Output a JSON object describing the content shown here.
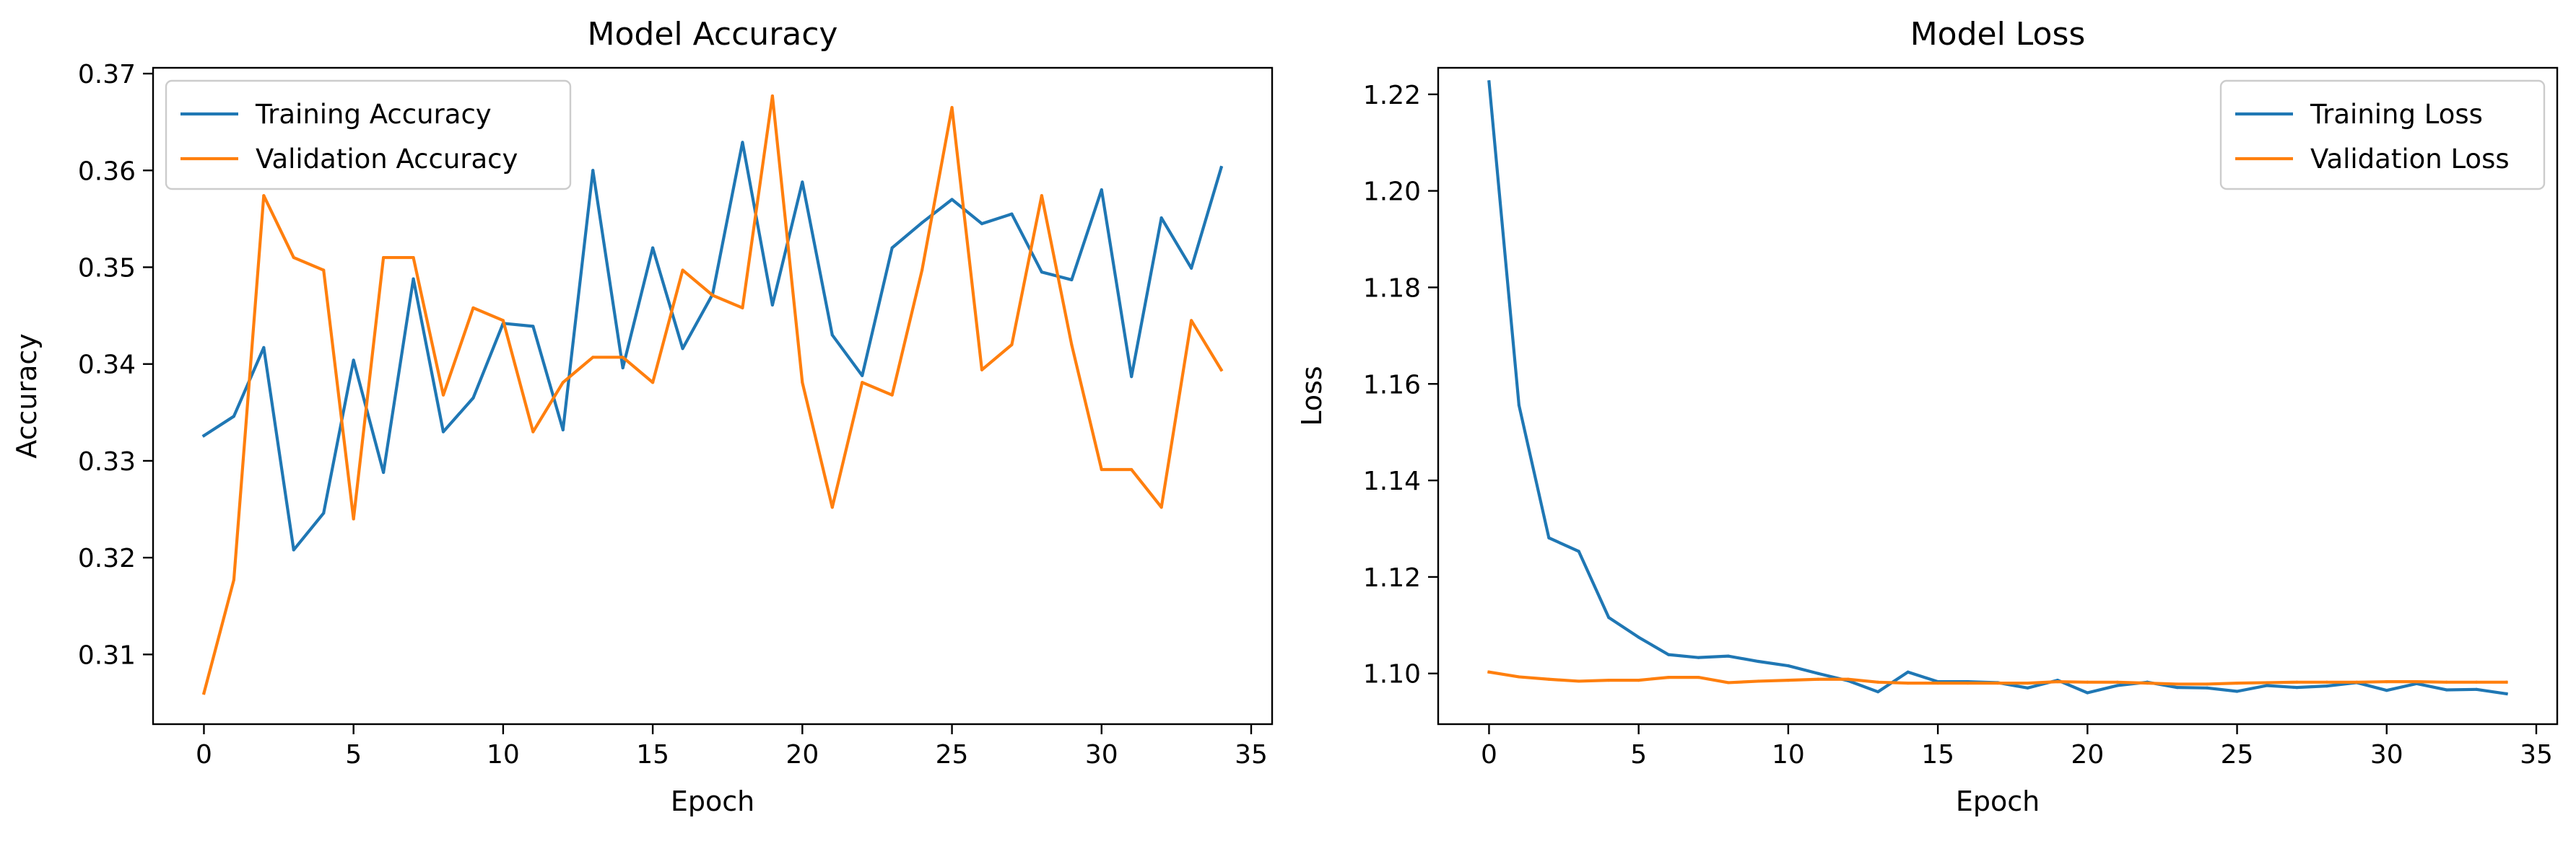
{
  "chart_data": [
    {
      "type": "line",
      "title": "Model Accuracy",
      "xlabel": "Epoch",
      "ylabel": "Accuracy",
      "xlim": [
        -1.7,
        35.7
      ],
      "ylim": [
        0.3028,
        0.3706
      ],
      "xticks": [
        0,
        5,
        10,
        15,
        20,
        25,
        30,
        35
      ],
      "yticks": [
        0.31,
        0.32,
        0.33,
        0.34,
        0.35,
        0.36,
        0.37
      ],
      "ytick_labels": [
        "0.31",
        "0.32",
        "0.33",
        "0.34",
        "0.35",
        "0.36",
        "0.37"
      ],
      "grid": false,
      "legend": "upper left",
      "x": [
        0,
        1,
        2,
        3,
        4,
        5,
        6,
        7,
        8,
        9,
        10,
        11,
        12,
        13,
        14,
        15,
        16,
        17,
        18,
        19,
        20,
        21,
        22,
        23,
        24,
        25,
        26,
        27,
        28,
        29,
        30,
        31,
        32,
        33,
        34
      ],
      "series": [
        {
          "name": "Training Accuracy",
          "color": "#1f77b4",
          "values": [
            0.3326,
            0.3346,
            0.3417,
            0.3208,
            0.3246,
            0.3404,
            0.3288,
            0.3488,
            0.333,
            0.3365,
            0.3442,
            0.3439,
            0.3332,
            0.36,
            0.3396,
            0.352,
            0.3416,
            0.3472,
            0.3629,
            0.3461,
            0.3588,
            0.343,
            0.3388,
            0.352,
            0.3546,
            0.357,
            0.3545,
            0.3555,
            0.3495,
            0.3487,
            0.358,
            0.3387,
            0.3551,
            0.3499,
            0.3603
          ]
        },
        {
          "name": "Validation Accuracy",
          "color": "#ff7f0e",
          "values": [
            0.306,
            0.3177,
            0.3574,
            0.351,
            0.3497,
            0.324,
            0.351,
            0.351,
            0.3368,
            0.3458,
            0.3445,
            0.333,
            0.3381,
            0.3407,
            0.3407,
            0.3381,
            0.3497,
            0.3471,
            0.3458,
            0.3677,
            0.3381,
            0.3252,
            0.3381,
            0.3368,
            0.3497,
            0.3665,
            0.3394,
            0.342,
            0.3574,
            0.342,
            0.3291,
            0.3291,
            0.3252,
            0.3445,
            0.3394
          ]
        }
      ]
    },
    {
      "type": "line",
      "title": "Model Loss",
      "xlabel": "Epoch",
      "ylabel": "Loss",
      "xlim": [
        -1.7,
        35.7
      ],
      "ylim": [
        1.0895,
        1.2255
      ],
      "xticks": [
        0,
        5,
        10,
        15,
        20,
        25,
        30,
        35
      ],
      "yticks": [
        1.1,
        1.12,
        1.14,
        1.16,
        1.18,
        1.2,
        1.22
      ],
      "ytick_labels": [
        "1.10",
        "1.12",
        "1.14",
        "1.16",
        "1.18",
        "1.20",
        "1.22"
      ],
      "grid": false,
      "legend": "upper right",
      "x": [
        0,
        1,
        2,
        3,
        4,
        5,
        6,
        7,
        8,
        9,
        10,
        11,
        12,
        13,
        14,
        15,
        16,
        17,
        18,
        19,
        20,
        21,
        22,
        23,
        24,
        25,
        26,
        27,
        28,
        29,
        30,
        31,
        32,
        33,
        34
      ],
      "series": [
        {
          "name": "Training Loss",
          "color": "#1f77b4",
          "values": [
            1.2226,
            1.1556,
            1.1281,
            1.1253,
            1.1116,
            1.1075,
            1.1039,
            1.1033,
            1.1036,
            1.1025,
            1.1016,
            1.1,
            1.0985,
            1.0962,
            1.1003,
            1.0983,
            1.0983,
            1.0981,
            1.097,
            1.0986,
            1.096,
            1.0975,
            1.0982,
            1.0971,
            1.097,
            1.0963,
            1.0975,
            1.0971,
            1.0974,
            1.0981,
            1.0965,
            1.0979,
            1.0966,
            1.0967,
            1.0958
          ]
        },
        {
          "name": "Validation Loss",
          "color": "#ff7f0e",
          "values": [
            1.1003,
            1.0993,
            1.0988,
            1.0984,
            1.0986,
            1.0986,
            1.0992,
            1.0992,
            1.0981,
            1.0984,
            1.0986,
            1.0988,
            1.0988,
            1.0982,
            1.098,
            1.098,
            1.098,
            1.098,
            1.098,
            1.0983,
            1.0982,
            1.0982,
            1.098,
            1.0978,
            1.0978,
            1.098,
            1.0981,
            1.0982,
            1.0982,
            1.0982,
            1.0983,
            1.0983,
            1.0982,
            1.0982,
            1.0982
          ]
        }
      ]
    }
  ]
}
